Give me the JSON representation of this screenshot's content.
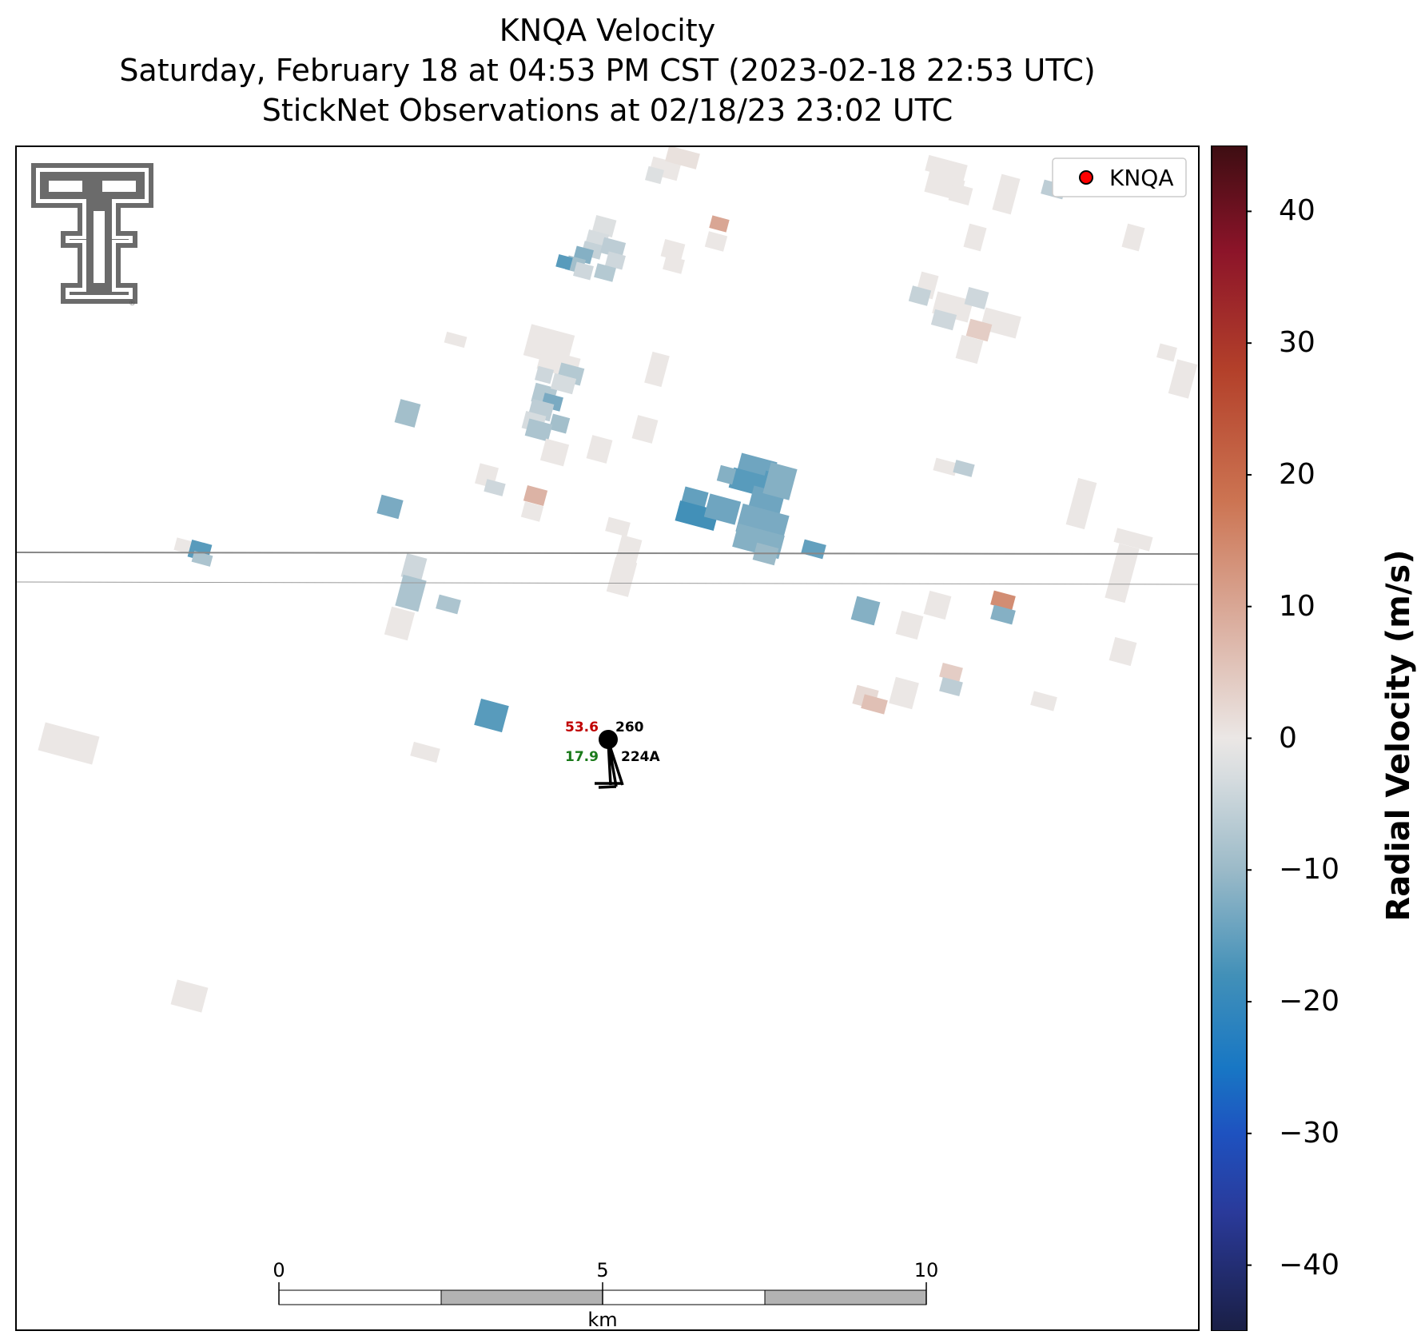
{
  "title": {
    "line1": "KNQA Velocity",
    "line2": "Saturday, February 18 at 04:53 PM CST (2023-02-18 22:53 UTC)",
    "line3": "StickNet Observations at 02/18/23 23:02 UTC"
  },
  "legend": {
    "label": "KNQA",
    "marker_color": "#ff0000",
    "placement": "upper-right"
  },
  "logo": {
    "name": "texas-tech-double-t-logo",
    "mark": "®"
  },
  "station": {
    "id": "224A",
    "temperature": "53.6",
    "dewpoint": "17.9",
    "pressure": "260",
    "temperature_color": "#c00000",
    "dewpoint_color": "#1a7a1a"
  },
  "scalebar": {
    "labels": [
      "0",
      "5",
      "10"
    ],
    "unit": "km",
    "max_km": 10
  },
  "colorbar": {
    "label": "Radial Velocity (m/s)",
    "min": -45,
    "max": 45,
    "ticks": [
      "40",
      "30",
      "20",
      "10",
      "0",
      "−10",
      "−20",
      "−30",
      "−40"
    ],
    "tick_values": [
      40,
      30,
      20,
      10,
      0,
      -10,
      -20,
      -30,
      -40
    ],
    "stops": [
      {
        "v": -45,
        "color": "#1a1f45"
      },
      {
        "v": -36,
        "color": "#2a3a9a"
      },
      {
        "v": -30,
        "color": "#1e52c0"
      },
      {
        "v": -25,
        "color": "#1877c4"
      },
      {
        "v": -18,
        "color": "#4290b8"
      },
      {
        "v": -10,
        "color": "#9bbac8"
      },
      {
        "v": -3,
        "color": "#d6dcdf"
      },
      {
        "v": 0,
        "color": "#ebe7e5"
      },
      {
        "v": 8,
        "color": "#dcb3a5"
      },
      {
        "v": 18,
        "color": "#cc7452"
      },
      {
        "v": 28,
        "color": "#b3402a"
      },
      {
        "v": 37,
        "color": "#8c1429"
      },
      {
        "v": 45,
        "color": "#3d0d12"
      }
    ]
  },
  "colors": {
    "axes": "#000000",
    "county_line": "#808080"
  }
}
